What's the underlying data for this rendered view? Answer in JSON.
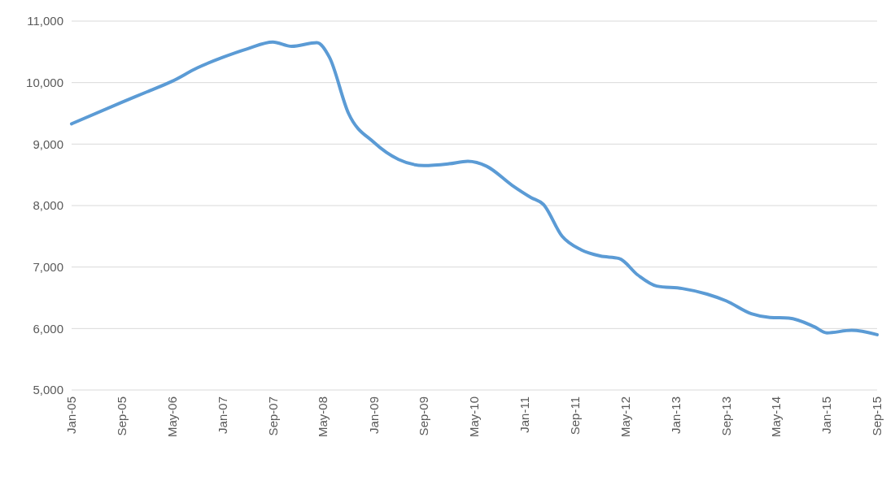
{
  "chart_data": {
    "type": "line",
    "x": [
      "2005-01",
      "2005-09",
      "2006-01",
      "2006-05",
      "2006-09",
      "2007-01",
      "2007-05",
      "2007-09",
      "2007-12",
      "2008-04",
      "2008-06",
      "2008-09",
      "2009-01",
      "2009-05",
      "2009-09",
      "2010-01",
      "2010-04",
      "2010-07",
      "2010-11",
      "2011-02",
      "2011-04",
      "2011-07",
      "2011-10",
      "2012-01",
      "2012-04",
      "2012-07",
      "2012-10",
      "2013-02",
      "2013-06",
      "2013-09",
      "2014-01",
      "2014-04",
      "2014-07",
      "2014-11",
      "2015-01",
      "2015-05",
      "2015-09"
    ],
    "series": [
      {
        "color": "#5b9bd5",
        "values": [
          9330,
          9680,
          9850,
          10020,
          10240,
          10410,
          10550,
          10660,
          10590,
          10650,
          10410,
          9500,
          9030,
          8750,
          8650,
          8680,
          8720,
          8640,
          8330,
          8130,
          8020,
          7500,
          7280,
          7180,
          7140,
          6870,
          6690,
          6650,
          6560,
          6450,
          6240,
          6180,
          6170,
          6030,
          5930,
          5970,
          5900
        ]
      }
    ],
    "ylim": [
      5000,
      11000
    ],
    "yticks": [
      {
        "value": 5000,
        "label": "5,000"
      },
      {
        "value": 6000,
        "label": "6,000"
      },
      {
        "value": 7000,
        "label": "7,000"
      },
      {
        "value": 8000,
        "label": "8,000"
      },
      {
        "value": 9000,
        "label": "9,000"
      },
      {
        "value": 10000,
        "label": "10,000"
      },
      {
        "value": 11000,
        "label": "11,000"
      }
    ],
    "xlim": [
      "2005-01",
      "2015-09"
    ],
    "xticks": [
      {
        "value": "2005-01",
        "label": "Jan-05"
      },
      {
        "value": "2005-09",
        "label": "Sep-05"
      },
      {
        "value": "2006-05",
        "label": "May-06"
      },
      {
        "value": "2007-01",
        "label": "Jan-07"
      },
      {
        "value": "2007-09",
        "label": "Sep-07"
      },
      {
        "value": "2008-05",
        "label": "May-08"
      },
      {
        "value": "2009-01",
        "label": "Jan-09"
      },
      {
        "value": "2009-09",
        "label": "Sep-09"
      },
      {
        "value": "2010-05",
        "label": "May-10"
      },
      {
        "value": "2011-01",
        "label": "Jan-11"
      },
      {
        "value": "2011-09",
        "label": "Sep-11"
      },
      {
        "value": "2012-05",
        "label": "May-12"
      },
      {
        "value": "2013-01",
        "label": "Jan-13"
      },
      {
        "value": "2013-09",
        "label": "Sep-13"
      },
      {
        "value": "2014-05",
        "label": "May-14"
      },
      {
        "value": "2015-01",
        "label": "Jan-15"
      },
      {
        "value": "2015-09",
        "label": "Sep-15"
      }
    ],
    "grid": "y",
    "marker": "none",
    "line_style": "solid"
  }
}
